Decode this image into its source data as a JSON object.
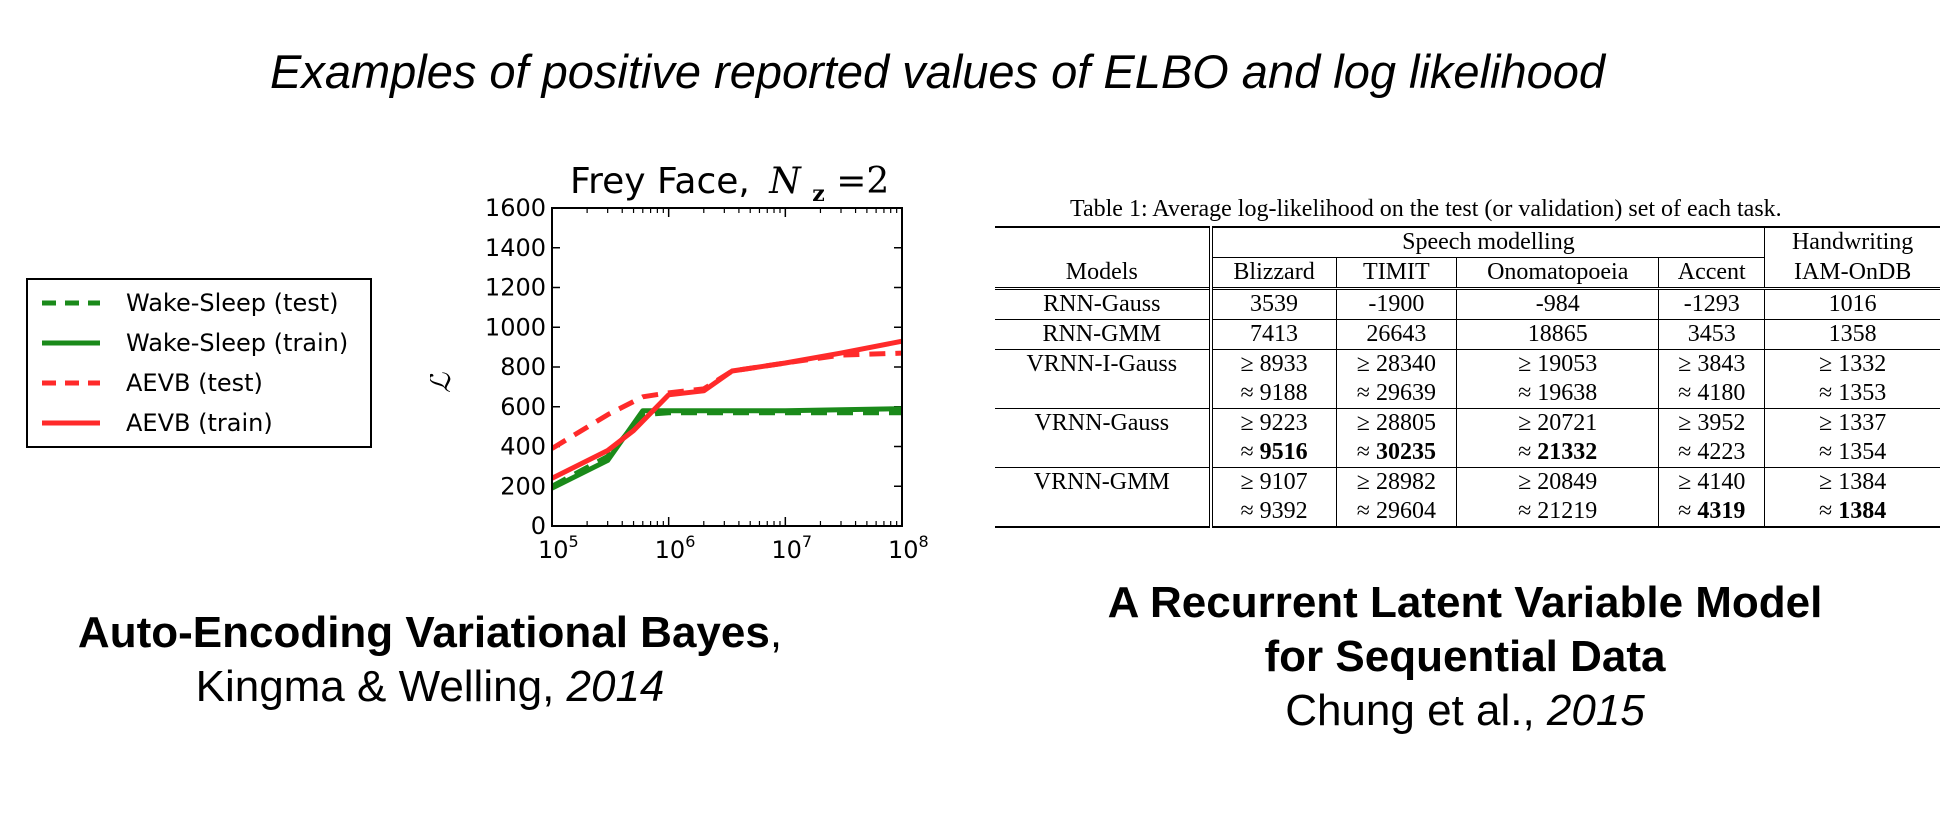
{
  "slide_title": "Examples of positive reported values of ELBO and log likelihood",
  "chart_data": {
    "type": "line",
    "title": "Frey Face, N_z = 2",
    "title_prefix": "Frey Face,",
    "title_var": "N",
    "title_sub": "z",
    "title_suffix": "=2",
    "ylabel": "ℒ",
    "xlabel": "",
    "x_scale": "log",
    "xlim": [
      100000,
      100000000
    ],
    "ylim": [
      0,
      1600
    ],
    "x_ticks": [
      {
        "base": "10",
        "exp": "5",
        "value": 100000
      },
      {
        "base": "10",
        "exp": "6",
        "value": 1000000
      },
      {
        "base": "10",
        "exp": "7",
        "value": 10000000
      },
      {
        "base": "10",
        "exp": "8",
        "value": 100000000
      }
    ],
    "y_ticks": [
      "0",
      "200",
      "400",
      "600",
      "800",
      "1000",
      "1200",
      "1400",
      "1600"
    ],
    "legend_position": "left, outside plot",
    "series": [
      {
        "name": "Wake-Sleep (test)",
        "color": "#1a8a1a",
        "dash": "dashed",
        "x": [
          100000,
          300000,
          600000,
          1000000,
          10000000,
          100000000
        ],
        "y": [
          200,
          350,
          560,
          570,
          570,
          570
        ]
      },
      {
        "name": "Wake-Sleep (train)",
        "color": "#1a8a1a",
        "dash": "solid",
        "x": [
          100000,
          300000,
          600000,
          1000000,
          10000000,
          100000000
        ],
        "y": [
          190,
          330,
          580,
          580,
          580,
          590
        ]
      },
      {
        "name": "AEVB (test)",
        "color": "#ff2a2a",
        "dash": "dashed",
        "x": [
          100000,
          300000,
          600000,
          1000000,
          2000000,
          3500000,
          10000000,
          30000000,
          100000000
        ],
        "y": [
          390,
          560,
          650,
          670,
          690,
          780,
          820,
          860,
          870
        ]
      },
      {
        "name": "AEVB (train)",
        "color": "#ff2a2a",
        "dash": "solid",
        "x": [
          100000,
          300000,
          500000,
          1000000,
          2000000,
          3500000,
          10000000,
          30000000,
          100000000
        ],
        "y": [
          240,
          380,
          480,
          660,
          680,
          780,
          820,
          870,
          930
        ]
      }
    ]
  },
  "left_paper": {
    "title": "Auto-Encoding Variational Bayes",
    "title_comma": ",",
    "authors": "Kingma & Welling",
    "sep": ", ",
    "year": "2014"
  },
  "table": {
    "caption": "Table 1: Average log-likelihood on the test (or validation) set of each task.",
    "group_headers": {
      "speech": "Speech modelling",
      "hand": "Handwriting"
    },
    "models_header": "Models",
    "columns": [
      "Blizzard",
      "TIMIT",
      "Onomatopoeia",
      "Accent",
      "IAM-OnDB"
    ],
    "rows": [
      {
        "model": "RNN-Gauss",
        "values": [
          "3539",
          "-1900",
          "-984",
          "-1293",
          "1016"
        ]
      },
      {
        "model": "RNN-GMM",
        "values": [
          "7413",
          "26643",
          "18865",
          "3453",
          "1358"
        ]
      },
      {
        "model": "VRNN-I-Gauss",
        "lower_bound": [
          "8933",
          "28340",
          "19053",
          "3843",
          "1332"
        ],
        "approx": [
          "9188",
          "29639",
          "19638",
          "4180",
          "1353"
        ]
      },
      {
        "model": "VRNN-Gauss",
        "lower_bound": [
          "9223",
          "28805",
          "20721",
          "3952",
          "1337"
        ],
        "approx": [
          "9516",
          "30235",
          "21332",
          "4223",
          "1354"
        ]
      },
      {
        "model": "VRNN-GMM",
        "lower_bound": [
          "9107",
          "28982",
          "20849",
          "4140",
          "1384"
        ],
        "approx": [
          "9392",
          "29604",
          "21219",
          "4319",
          "1384"
        ]
      }
    ],
    "symbols": {
      "geq": "≥",
      "approx": "≈"
    }
  },
  "right_paper": {
    "title_line1": "A Recurrent Latent Variable Model",
    "title_line2": "for Sequential Data",
    "authors": "Chung et al.",
    "sep": ", ",
    "year": "2015"
  }
}
